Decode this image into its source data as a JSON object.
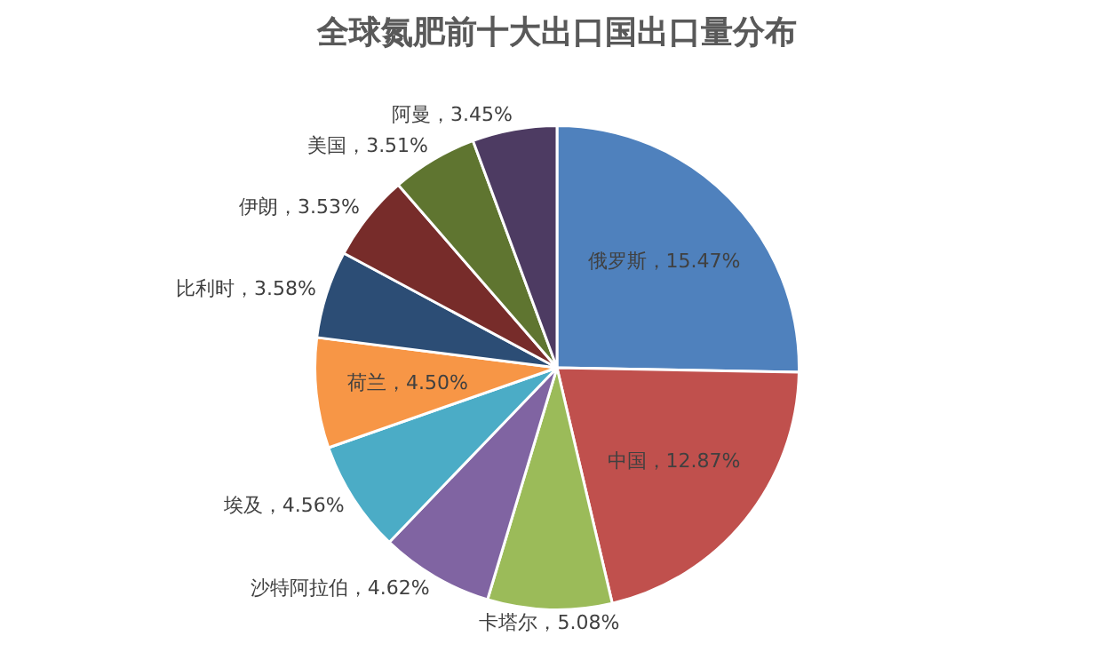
{
  "chart_data": {
    "type": "pie",
    "title": "全球氮肥前十大出口国出口量分布",
    "categories": [
      "俄罗斯",
      "中国",
      "卡塔尔",
      "沙特阿拉伯",
      "埃及",
      "荷兰",
      "比利时",
      "伊朗",
      "美国",
      "阿曼"
    ],
    "values": [
      15.47,
      12.87,
      5.08,
      4.62,
      4.56,
      4.5,
      3.58,
      3.53,
      3.51,
      3.45
    ],
    "value_labels": [
      "15.47%",
      "12.87%",
      "5.08%",
      "4.62%",
      "4.56%",
      "4.50%",
      "3.58%",
      "3.53%",
      "3.51%",
      "3.45%"
    ],
    "colors": [
      "#4f81bd",
      "#c0504d",
      "#9bbb59",
      "#8064a2",
      "#4bacc6",
      "#f79646",
      "#2c4d75",
      "#772c2a",
      "#5f7530",
      "#4d3b62"
    ]
  }
}
